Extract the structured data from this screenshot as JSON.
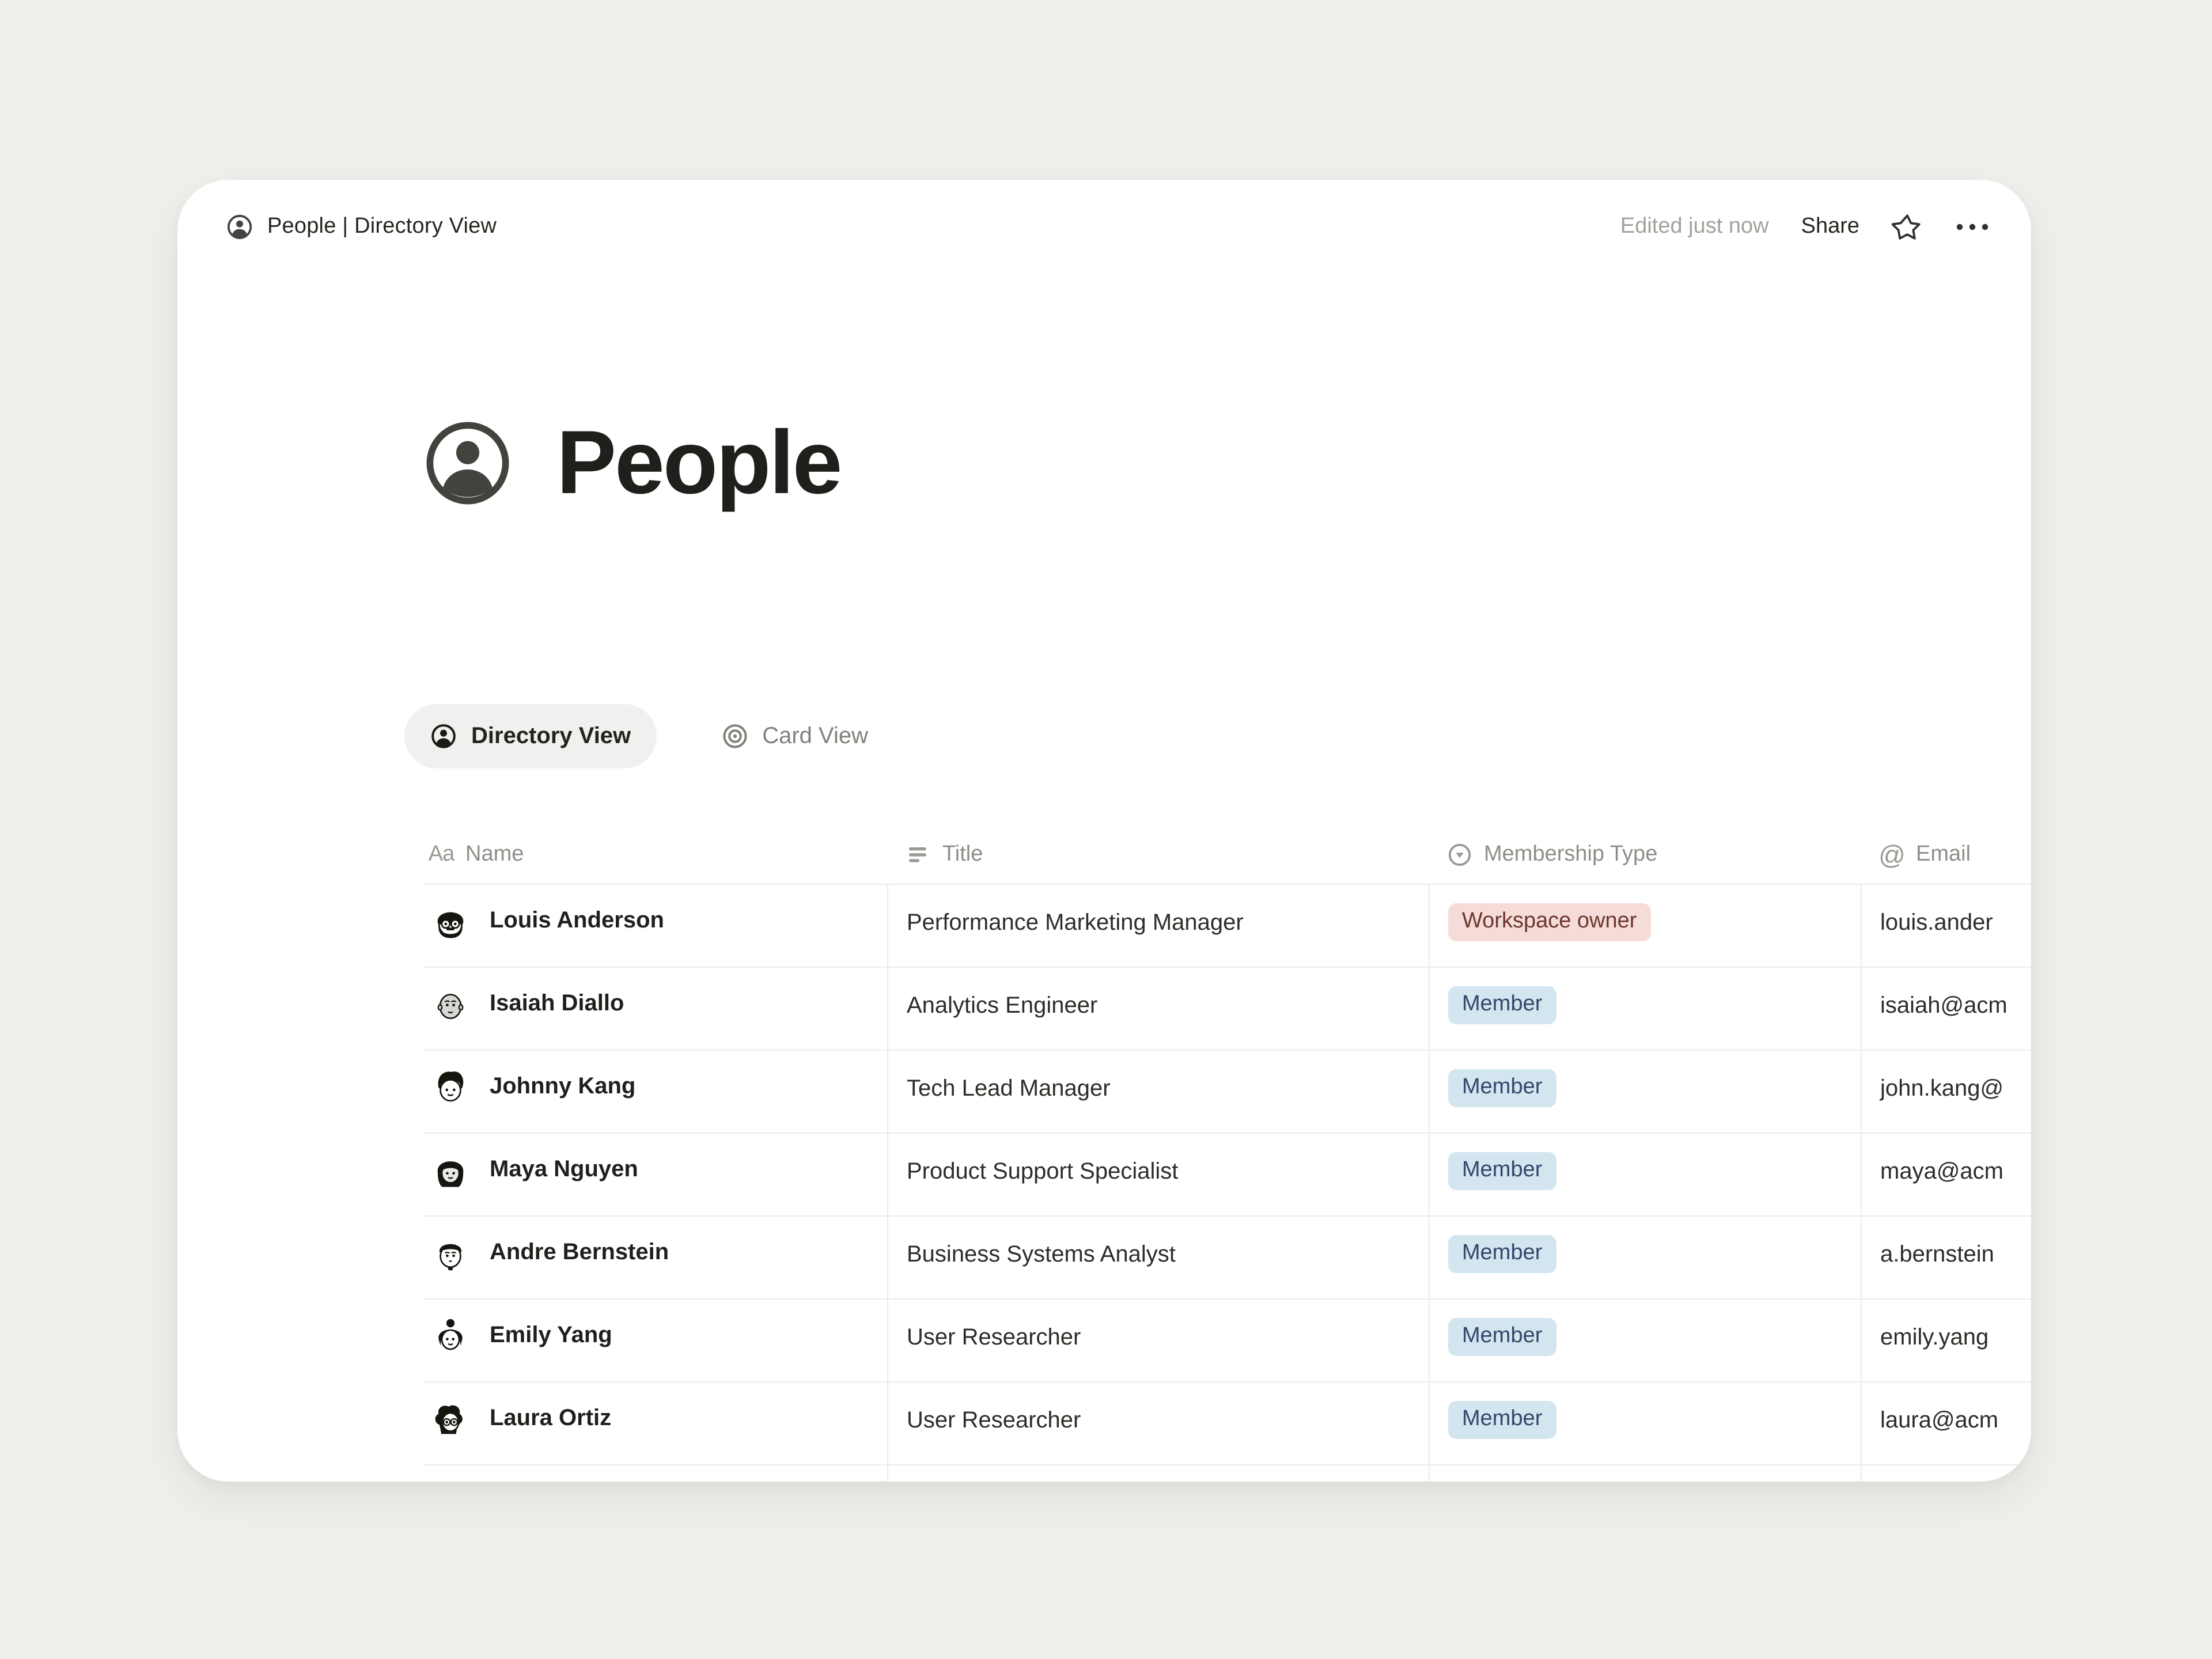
{
  "topbar": {
    "breadcrumb": "People | Directory View",
    "edited": "Edited just now",
    "share_label": "Share",
    "icons": {
      "breadcrumb": "person-circle-icon",
      "favorite": "star-outline-icon",
      "more": "ellipsis-icon"
    }
  },
  "page": {
    "title": "People",
    "icon": "person-circle-icon"
  },
  "tabs": [
    {
      "label": "Directory View",
      "icon": "person-circle-icon",
      "active": true
    },
    {
      "label": "Card View",
      "icon": "target-icon",
      "active": false
    }
  ],
  "table": {
    "columns": [
      {
        "label": "Name",
        "icon": "text-Aa-icon"
      },
      {
        "label": "Title",
        "icon": "text-lines-icon"
      },
      {
        "label": "Membership Type",
        "icon": "select-caret-icon"
      },
      {
        "label": "Email",
        "icon": "at-sign-icon"
      }
    ],
    "rows": [
      {
        "name": "Louis Anderson",
        "avatar": "louis",
        "title": "Performance Marketing Manager",
        "membership": "Workspace owner",
        "membership_color": "red",
        "email": "louis.ander"
      },
      {
        "name": "Isaiah Diallo",
        "avatar": "isaiah",
        "title": "Analytics Engineer",
        "membership": "Member",
        "membership_color": "blue",
        "email": "isaiah@acm"
      },
      {
        "name": "Johnny Kang",
        "avatar": "johnny",
        "title": "Tech Lead Manager",
        "membership": "Member",
        "membership_color": "blue",
        "email": "john.kang@"
      },
      {
        "name": "Maya Nguyen",
        "avatar": "maya",
        "title": "Product Support Specialist",
        "membership": "Member",
        "membership_color": "blue",
        "email": "maya@acm"
      },
      {
        "name": "Andre Bernstein",
        "avatar": "andre",
        "title": "Business Systems Analyst",
        "membership": "Member",
        "membership_color": "blue",
        "email": "a.bernstein"
      },
      {
        "name": "Emily Yang",
        "avatar": "emily",
        "title": "User Researcher",
        "membership": "Member",
        "membership_color": "blue",
        "email": "emily.yang"
      },
      {
        "name": "Laura Ortiz",
        "avatar": "laura",
        "title": "User Researcher",
        "membership": "Member",
        "membership_color": "blue",
        "email": "laura@acm"
      }
    ]
  },
  "colors": {
    "badge_blue_bg": "#d3e5ef",
    "badge_blue_text": "#30486b",
    "badge_red_bg": "#f5dcd8",
    "badge_red_text": "#6e3630",
    "page_background": "#f1efec",
    "card_background": "#ffffff"
  }
}
